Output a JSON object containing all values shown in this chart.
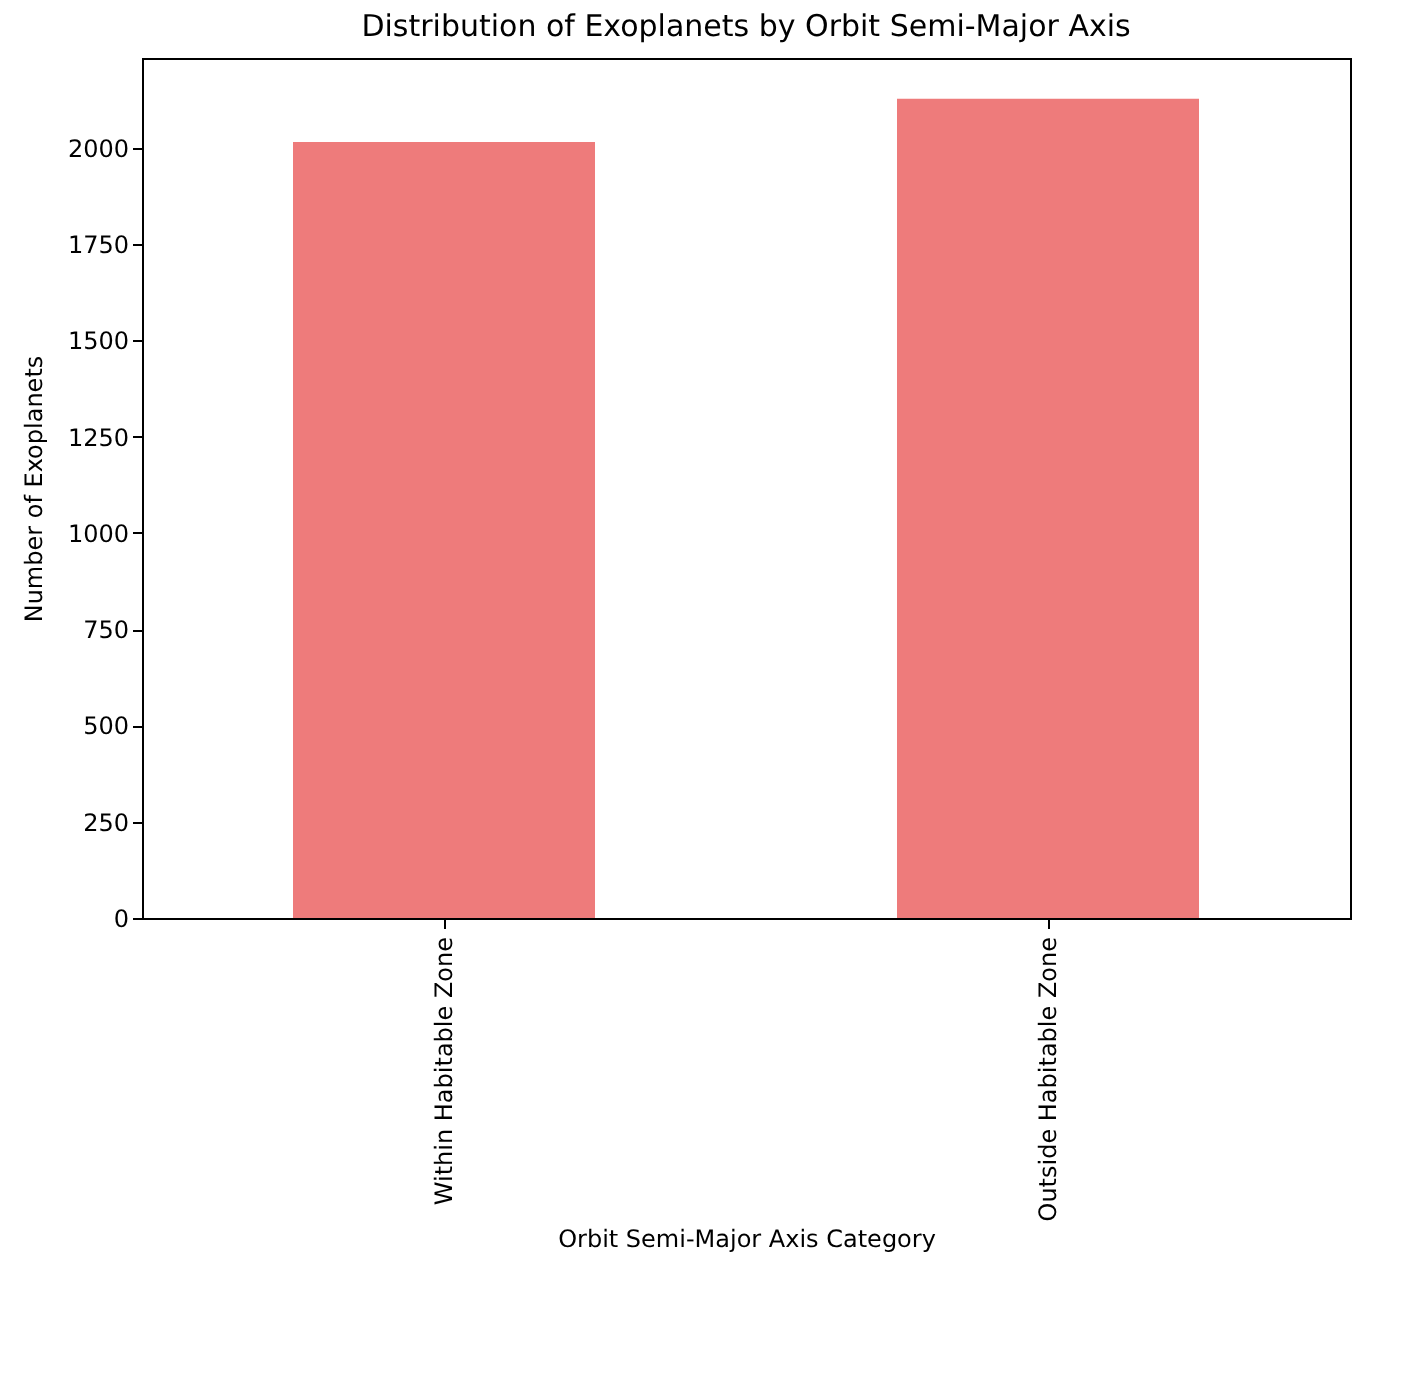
{
  "chart_data": {
    "type": "bar",
    "title": "Distribution of Exoplanets by Orbit Semi-Major Axis",
    "xlabel": "Orbit Semi-Major Axis Category",
    "ylabel": "Number of Exoplanets",
    "categories": [
      "Within Habitable Zone",
      "Outside Habitable Zone"
    ],
    "values": [
      2015,
      2127
    ],
    "color": "#ee7b7b",
    "ylim": [
      0,
      2233
    ],
    "yticks": [
      0,
      250,
      500,
      750,
      1000,
      1250,
      1500,
      1750,
      2000
    ],
    "grid": false
  }
}
